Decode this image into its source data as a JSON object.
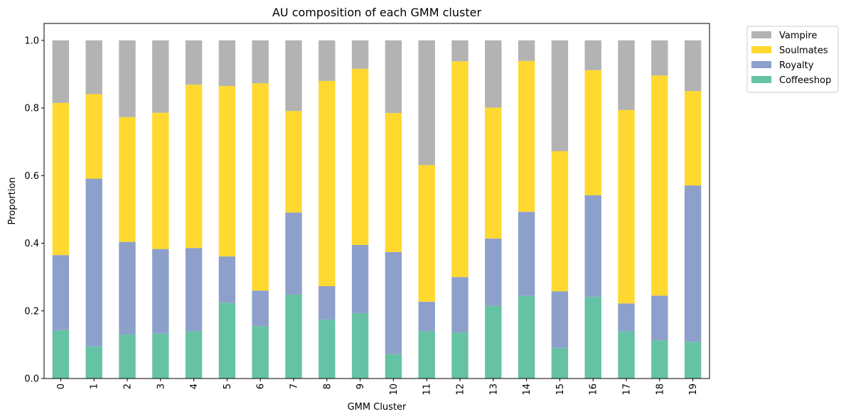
{
  "chart_data": {
    "type": "bar",
    "stacked": true,
    "title": "AU composition of each GMM cluster",
    "xlabel": "GMM Cluster",
    "ylabel": "Proportion",
    "ylim": [
      0,
      1.05
    ],
    "yticks": [
      "0.0",
      "0.2",
      "0.4",
      "0.6",
      "0.8",
      "1.0"
    ],
    "ytick_values": [
      0,
      0.2,
      0.4,
      0.6,
      0.8,
      1.0
    ],
    "categories": [
      "0",
      "1",
      "2",
      "3",
      "4",
      "5",
      "6",
      "7",
      "8",
      "9",
      "10",
      "11",
      "12",
      "13",
      "14",
      "15",
      "16",
      "17",
      "18",
      "19"
    ],
    "legend_placement": "outside-top-right",
    "grid": false,
    "series": [
      {
        "name": "Coffeeshop",
        "color": "#66c2a5",
        "values": [
          0.143,
          0.095,
          0.13,
          0.133,
          0.14,
          0.224,
          0.155,
          0.249,
          0.174,
          0.193,
          0.072,
          0.14,
          0.136,
          0.215,
          0.245,
          0.091,
          0.242,
          0.14,
          0.113,
          0.109
        ]
      },
      {
        "name": "Royalty",
        "color": "#8da0cb",
        "values": [
          0.222,
          0.496,
          0.274,
          0.25,
          0.246,
          0.137,
          0.105,
          0.242,
          0.099,
          0.202,
          0.302,
          0.087,
          0.164,
          0.199,
          0.248,
          0.167,
          0.3,
          0.082,
          0.132,
          0.462
        ]
      },
      {
        "name": "Soulmates",
        "color": "#ffd92f",
        "values": [
          0.45,
          0.25,
          0.369,
          0.403,
          0.483,
          0.504,
          0.613,
          0.3,
          0.607,
          0.521,
          0.411,
          0.404,
          0.638,
          0.387,
          0.446,
          0.414,
          0.37,
          0.572,
          0.651,
          0.279
        ]
      },
      {
        "name": "Vampire",
        "color": "#b3b3b3",
        "values": [
          0.185,
          0.159,
          0.227,
          0.214,
          0.131,
          0.135,
          0.127,
          0.209,
          0.12,
          0.084,
          0.215,
          0.369,
          0.062,
          0.199,
          0.061,
          0.328,
          0.088,
          0.206,
          0.104,
          0.15
        ]
      }
    ]
  }
}
